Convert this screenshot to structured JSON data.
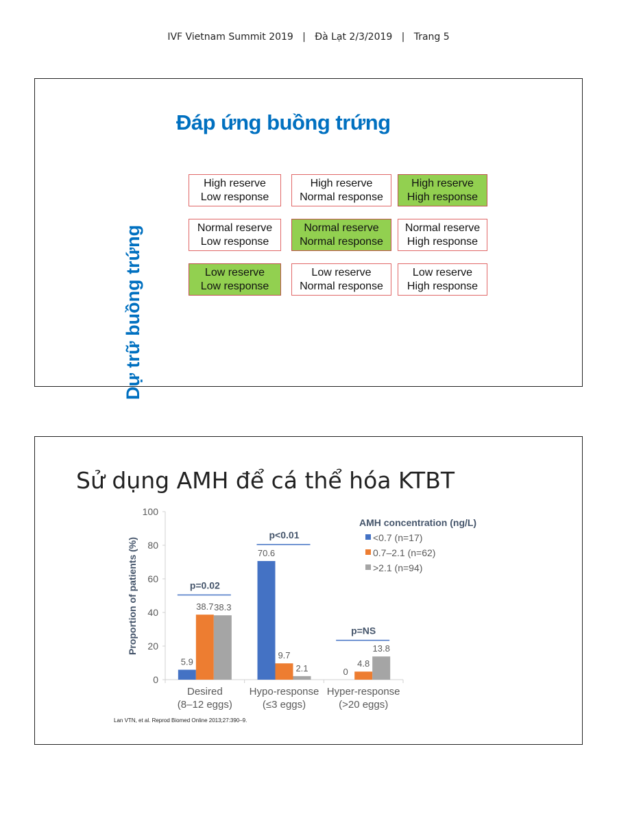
{
  "header": "IVF Vietnam Summit 2019   |   Đà Lạt 2/3/2019   |   Trang 5",
  "slide1": {
    "title": "Đáp ứng buồng trứng",
    "vertical_label": "Dự trữ buồng trứng",
    "colors": {
      "highlight": "#92d050",
      "border": "#e06666",
      "title": "#0070c0"
    },
    "grid": [
      [
        {
          "l1": "High reserve",
          "l2": "Low response",
          "hl": false
        },
        {
          "l1": "High reserve",
          "l2": "Normal response",
          "hl": false
        },
        {
          "l1": "High reserve",
          "l2": "High response",
          "hl": true
        }
      ],
      [
        {
          "l1": "Normal reserve",
          "l2": "Low response",
          "hl": false
        },
        {
          "l1": "Normal reserve",
          "l2": "Normal response",
          "hl": true
        },
        {
          "l1": "Normal reserve",
          "l2": "High response",
          "hl": false
        }
      ],
      [
        {
          "l1": "Low reserve",
          "l2": "Low response",
          "hl": true
        },
        {
          "l1": "Low reserve",
          "l2": "Normal response",
          "hl": false
        },
        {
          "l1": "Low reserve",
          "l2": "High response",
          "hl": false
        }
      ]
    ]
  },
  "slide2": {
    "title": "Sử dụng AMH để cá thể hóa KTBT",
    "citation": "Lan VTN, et al. Reprod Biomed Online 2013;27:390–9."
  },
  "chart_data": {
    "type": "bar",
    "ylabel": "Proportion of patients (%)",
    "ylim": [
      0,
      100
    ],
    "yticks": [
      "0",
      "20",
      "40",
      "60",
      "80",
      "100"
    ],
    "categories": [
      [
        "Desired",
        "(8–12 eggs)"
      ],
      [
        "Hypo-response",
        "(≤3 eggs)"
      ],
      [
        "Hyper-response",
        "(>20 eggs)"
      ]
    ],
    "legend_title": "AMH concentration (ng/L)",
    "legend_position": "top-right",
    "series": [
      {
        "name": "<0.7 (n=17)",
        "color": "#4472c4",
        "values": [
          5.9,
          70.6,
          0
        ],
        "labels": [
          "5.9",
          "70.6",
          "0"
        ]
      },
      {
        "name": "0.7–2.1 (n=62)",
        "color": "#ed7d31",
        "values": [
          38.7,
          9.7,
          4.8
        ],
        "labels": [
          "38.7",
          "9.7",
          "4.8"
        ]
      },
      {
        "name": ">2.1 (n=94)",
        "color": "#a5a5a5",
        "values": [
          38.3,
          2.1,
          13.8
        ],
        "labels": [
          "38.3",
          "2.1",
          "13.8"
        ]
      }
    ],
    "annotations": [
      {
        "text": "p=0.02",
        "at": 50
      },
      {
        "text": "p<0.01",
        "at": 80
      },
      {
        "text": "p=NS",
        "at": 23
      }
    ]
  }
}
